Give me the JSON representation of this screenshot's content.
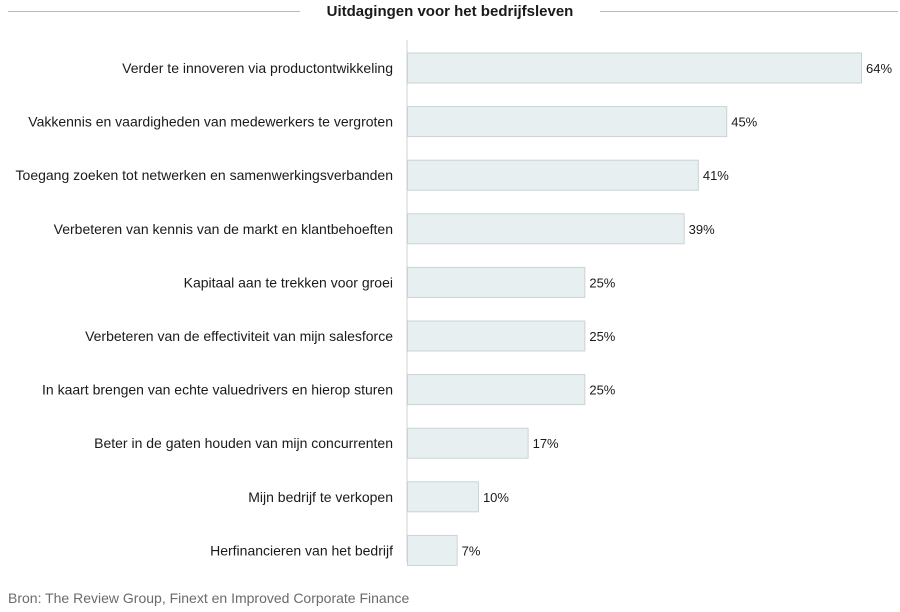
{
  "chart_data": {
    "type": "bar",
    "orientation": "horizontal",
    "title": "Uitdagingen voor het bedrijfsleven",
    "categories": [
      "Verder te innoveren via productontwikkeling",
      "Vakkennis en vaardigheden van medewerkers te vergroten",
      "Toegang zoeken tot netwerken en samenwerkingsverbanden",
      "Verbeteren van kennis van de markt en klantbehoeften",
      "Kapitaal aan te trekken voor groei",
      "Verbeteren van de effectiviteit van mijn salesforce",
      "In kaart brengen van echte valuedrivers en hierop sturen",
      "Beter in de gaten houden van mijn concurrenten",
      "Mijn bedrijf te verkopen",
      "Herfinancieren van het bedrijf"
    ],
    "values": [
      64,
      45,
      41,
      39,
      25,
      25,
      25,
      17,
      10,
      7
    ],
    "value_labels": [
      "64%",
      "45%",
      "41%",
      "39%",
      "25%",
      "25%",
      "25%",
      "17%",
      "10%",
      "7%"
    ],
    "xlim": [
      0,
      64
    ],
    "grid": false,
    "bar_color": "#e8eff0",
    "bar_border_color": "#c9d3d5",
    "axis_color": "#d0d0d0"
  },
  "source": "Bron: The Review Group, Finext en Improved Corporate Finance"
}
